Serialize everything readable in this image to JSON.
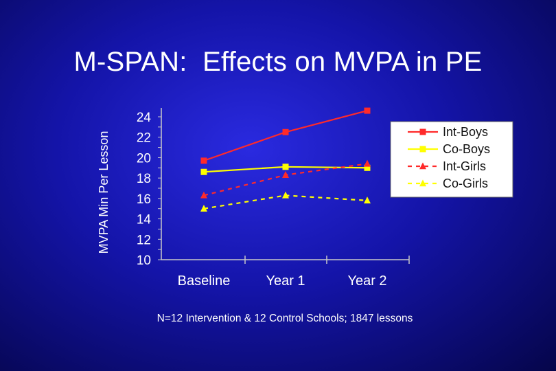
{
  "slide": {
    "title": "M-SPAN:  Effects on MVPA in PE",
    "footnote": "N=12 Intervention & 12 Control Schools; 1847 lessons"
  },
  "chart_data": {
    "type": "line",
    "title": "M-SPAN:  Effects on MVPA in PE",
    "xlabel": "",
    "ylabel": "MVPA Min  Per Lesson",
    "categories": [
      "Baseline",
      "Year 1",
      "Year 2"
    ],
    "ylim": [
      10,
      24
    ],
    "yticks": [
      10,
      12,
      14,
      16,
      18,
      20,
      22,
      24
    ],
    "grid": false,
    "legend_position": "right",
    "series": [
      {
        "name": "Int-Boys",
        "values": [
          19.7,
          22.5,
          24.6
        ],
        "color": "#ff2a2a",
        "line": "solid",
        "marker": "square"
      },
      {
        "name": "Co-Boys",
        "values": [
          18.6,
          19.1,
          19.0
        ],
        "color": "#ffff00",
        "line": "solid",
        "marker": "square"
      },
      {
        "name": "Int-Girls",
        "values": [
          16.3,
          18.3,
          19.4
        ],
        "color": "#ff2a2a",
        "line": "dashed",
        "marker": "triangle"
      },
      {
        "name": "Co-Girls",
        "values": [
          15.0,
          16.3,
          15.8
        ],
        "color": "#ffff00",
        "line": "dashed",
        "marker": "triangle"
      }
    ]
  }
}
